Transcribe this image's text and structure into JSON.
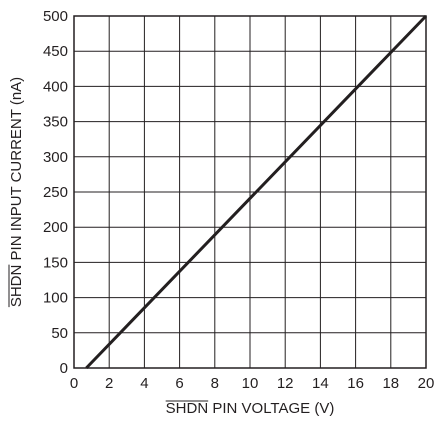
{
  "chart_data": {
    "type": "line",
    "xlabel_overline": "SHDN",
    "xlabel_rest": " PIN VOLTAGE (V)",
    "ylabel_overline": "SHDN",
    "ylabel_rest": " PIN INPUT CURRENT (nA)",
    "xlim": [
      0,
      20
    ],
    "ylim": [
      0,
      500
    ],
    "x_ticks": [
      0,
      2,
      4,
      6,
      8,
      10,
      12,
      14,
      16,
      18,
      20
    ],
    "y_ticks": [
      0,
      50,
      100,
      150,
      200,
      250,
      300,
      350,
      400,
      450,
      500
    ],
    "grid": true,
    "series": [
      {
        "x": [
          0.7,
          20
        ],
        "y": [
          0,
          500
        ]
      }
    ]
  }
}
